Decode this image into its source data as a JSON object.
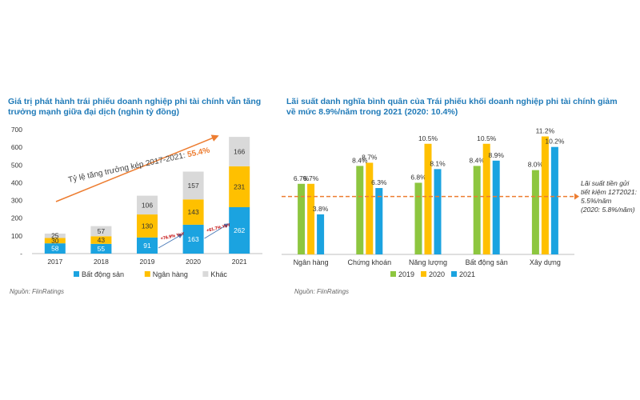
{
  "left": {
    "title": "Giá trị phát hành trái phiếu doanh nghiệp phi tài chính vẫn tăng trưởng mạnh giữa đại dịch (nghìn tỷ đồng)",
    "source": "Nguồn: FiinRatings",
    "cagr_label": "Tỷ lệ tăng trưởng kép 2017-2021:",
    "cagr_value": "55.4%",
    "yoy_labels": [
      "+76.9% YoY",
      "+61.7% YoY"
    ]
  },
  "right": {
    "title": "Lãi suất danh nghĩa bình quân của Trái phiếu khối doanh nghiệp phi tài chính giảm về mức 8.9%/năm trong 2021 (2020: 10.4%)",
    "source": "Nguồn: FiinRatings",
    "ref_line": {
      "value": 5.5,
      "lines": [
        "Lãi suất tiền gửi",
        "tiết kiệm 12T2021:",
        "5.5%/năm",
        "(2020: 5.8%/năm)"
      ]
    }
  },
  "chart_data": [
    {
      "type": "bar",
      "stacked": true,
      "categories": [
        "2017",
        "2018",
        "2019",
        "2020",
        "2021"
      ],
      "series": [
        {
          "name": "Bất động sản",
          "values": [
            58,
            55,
            91,
            163,
            262
          ]
        },
        {
          "name": "Ngân hàng",
          "values": [
            30,
            43,
            130,
            143,
            231
          ]
        },
        {
          "name": "Khác",
          "values": [
            25,
            57,
            106,
            157,
            166
          ]
        }
      ],
      "yticks": [
        "-",
        "100",
        "200",
        "300",
        "400",
        "500",
        "600",
        "700"
      ],
      "ylim": [
        0,
        700
      ],
      "legend": "bottom",
      "colors": [
        "#1ba3e0",
        "#ffc000",
        "#d9d9d9"
      ]
    },
    {
      "type": "bar",
      "categories": [
        "Ngân hàng",
        "Chứng khoán",
        "Năng lượng",
        "Bất động sản",
        "Xây dựng"
      ],
      "series": [
        {
          "name": "2019",
          "values": [
            6.7,
            8.4,
            6.8,
            8.4,
            8.0
          ],
          "labels": [
            "6.7%",
            "8.4%",
            "6.8%",
            "8.4%",
            "8.0%"
          ]
        },
        {
          "name": "2020",
          "values": [
            6.7,
            8.7,
            10.5,
            10.5,
            11.2
          ],
          "labels": [
            "6.7%",
            "8.7%",
            "10.5%",
            "10.5%",
            "11.2%"
          ]
        },
        {
          "name": "2021",
          "values": [
            3.8,
            6.3,
            8.1,
            8.9,
            10.2
          ],
          "labels": [
            "3.8%",
            "6.3%",
            "8.1%",
            "8.9%",
            "10.2%"
          ]
        }
      ],
      "ylim": [
        0,
        12
      ],
      "legend": "bottom",
      "colors": [
        "#8dc63f",
        "#ffc000",
        "#1ba3e0"
      ]
    }
  ]
}
